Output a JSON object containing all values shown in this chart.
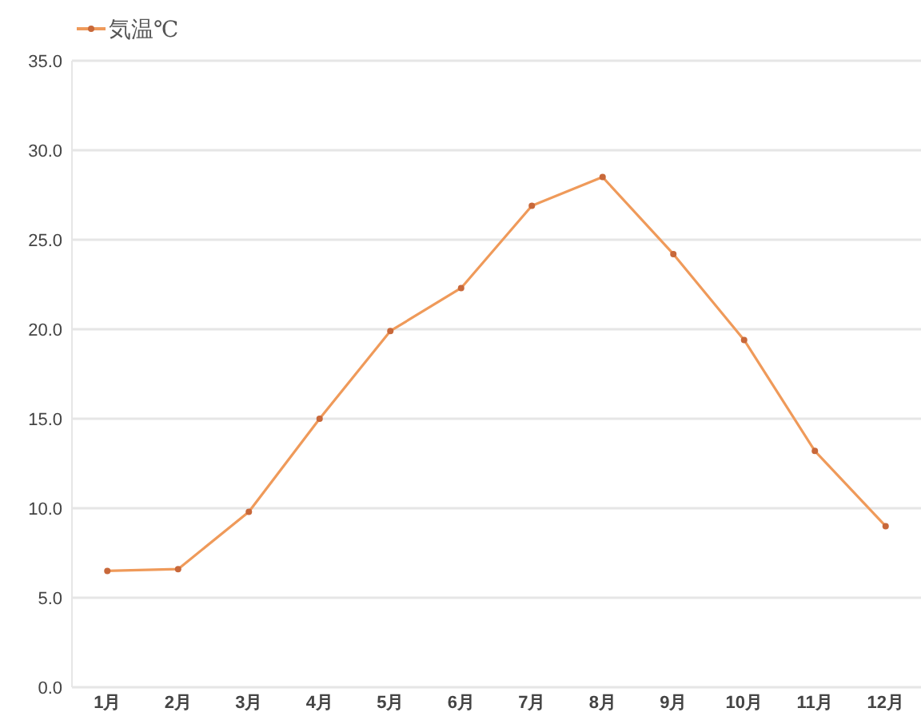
{
  "chart_data": {
    "type": "line",
    "categories": [
      "1月",
      "2月",
      "3月",
      "4月",
      "5月",
      "6月",
      "7月",
      "8月",
      "9月",
      "10月",
      "11月",
      "12月"
    ],
    "series": [
      {
        "name": "気温℃",
        "color": "#ef9a5a",
        "values": [
          6.5,
          6.6,
          9.8,
          15.0,
          19.9,
          22.3,
          26.9,
          28.5,
          24.2,
          19.4,
          13.2,
          9.0
        ]
      }
    ],
    "ylim": [
      0,
      35
    ],
    "yticks": [
      {
        "value": 0,
        "label": "0.0"
      },
      {
        "value": 5,
        "label": "5.0"
      },
      {
        "value": 10,
        "label": "10.0"
      },
      {
        "value": 15,
        "label": "15.0"
      },
      {
        "value": 20,
        "label": "20.0"
      },
      {
        "value": 25,
        "label": "25.0"
      },
      {
        "value": 30,
        "label": "30.0"
      },
      {
        "value": 35,
        "label": "35.0"
      }
    ],
    "grid": "y",
    "legend": "top left",
    "marker": "circle",
    "line_style": "solid"
  }
}
